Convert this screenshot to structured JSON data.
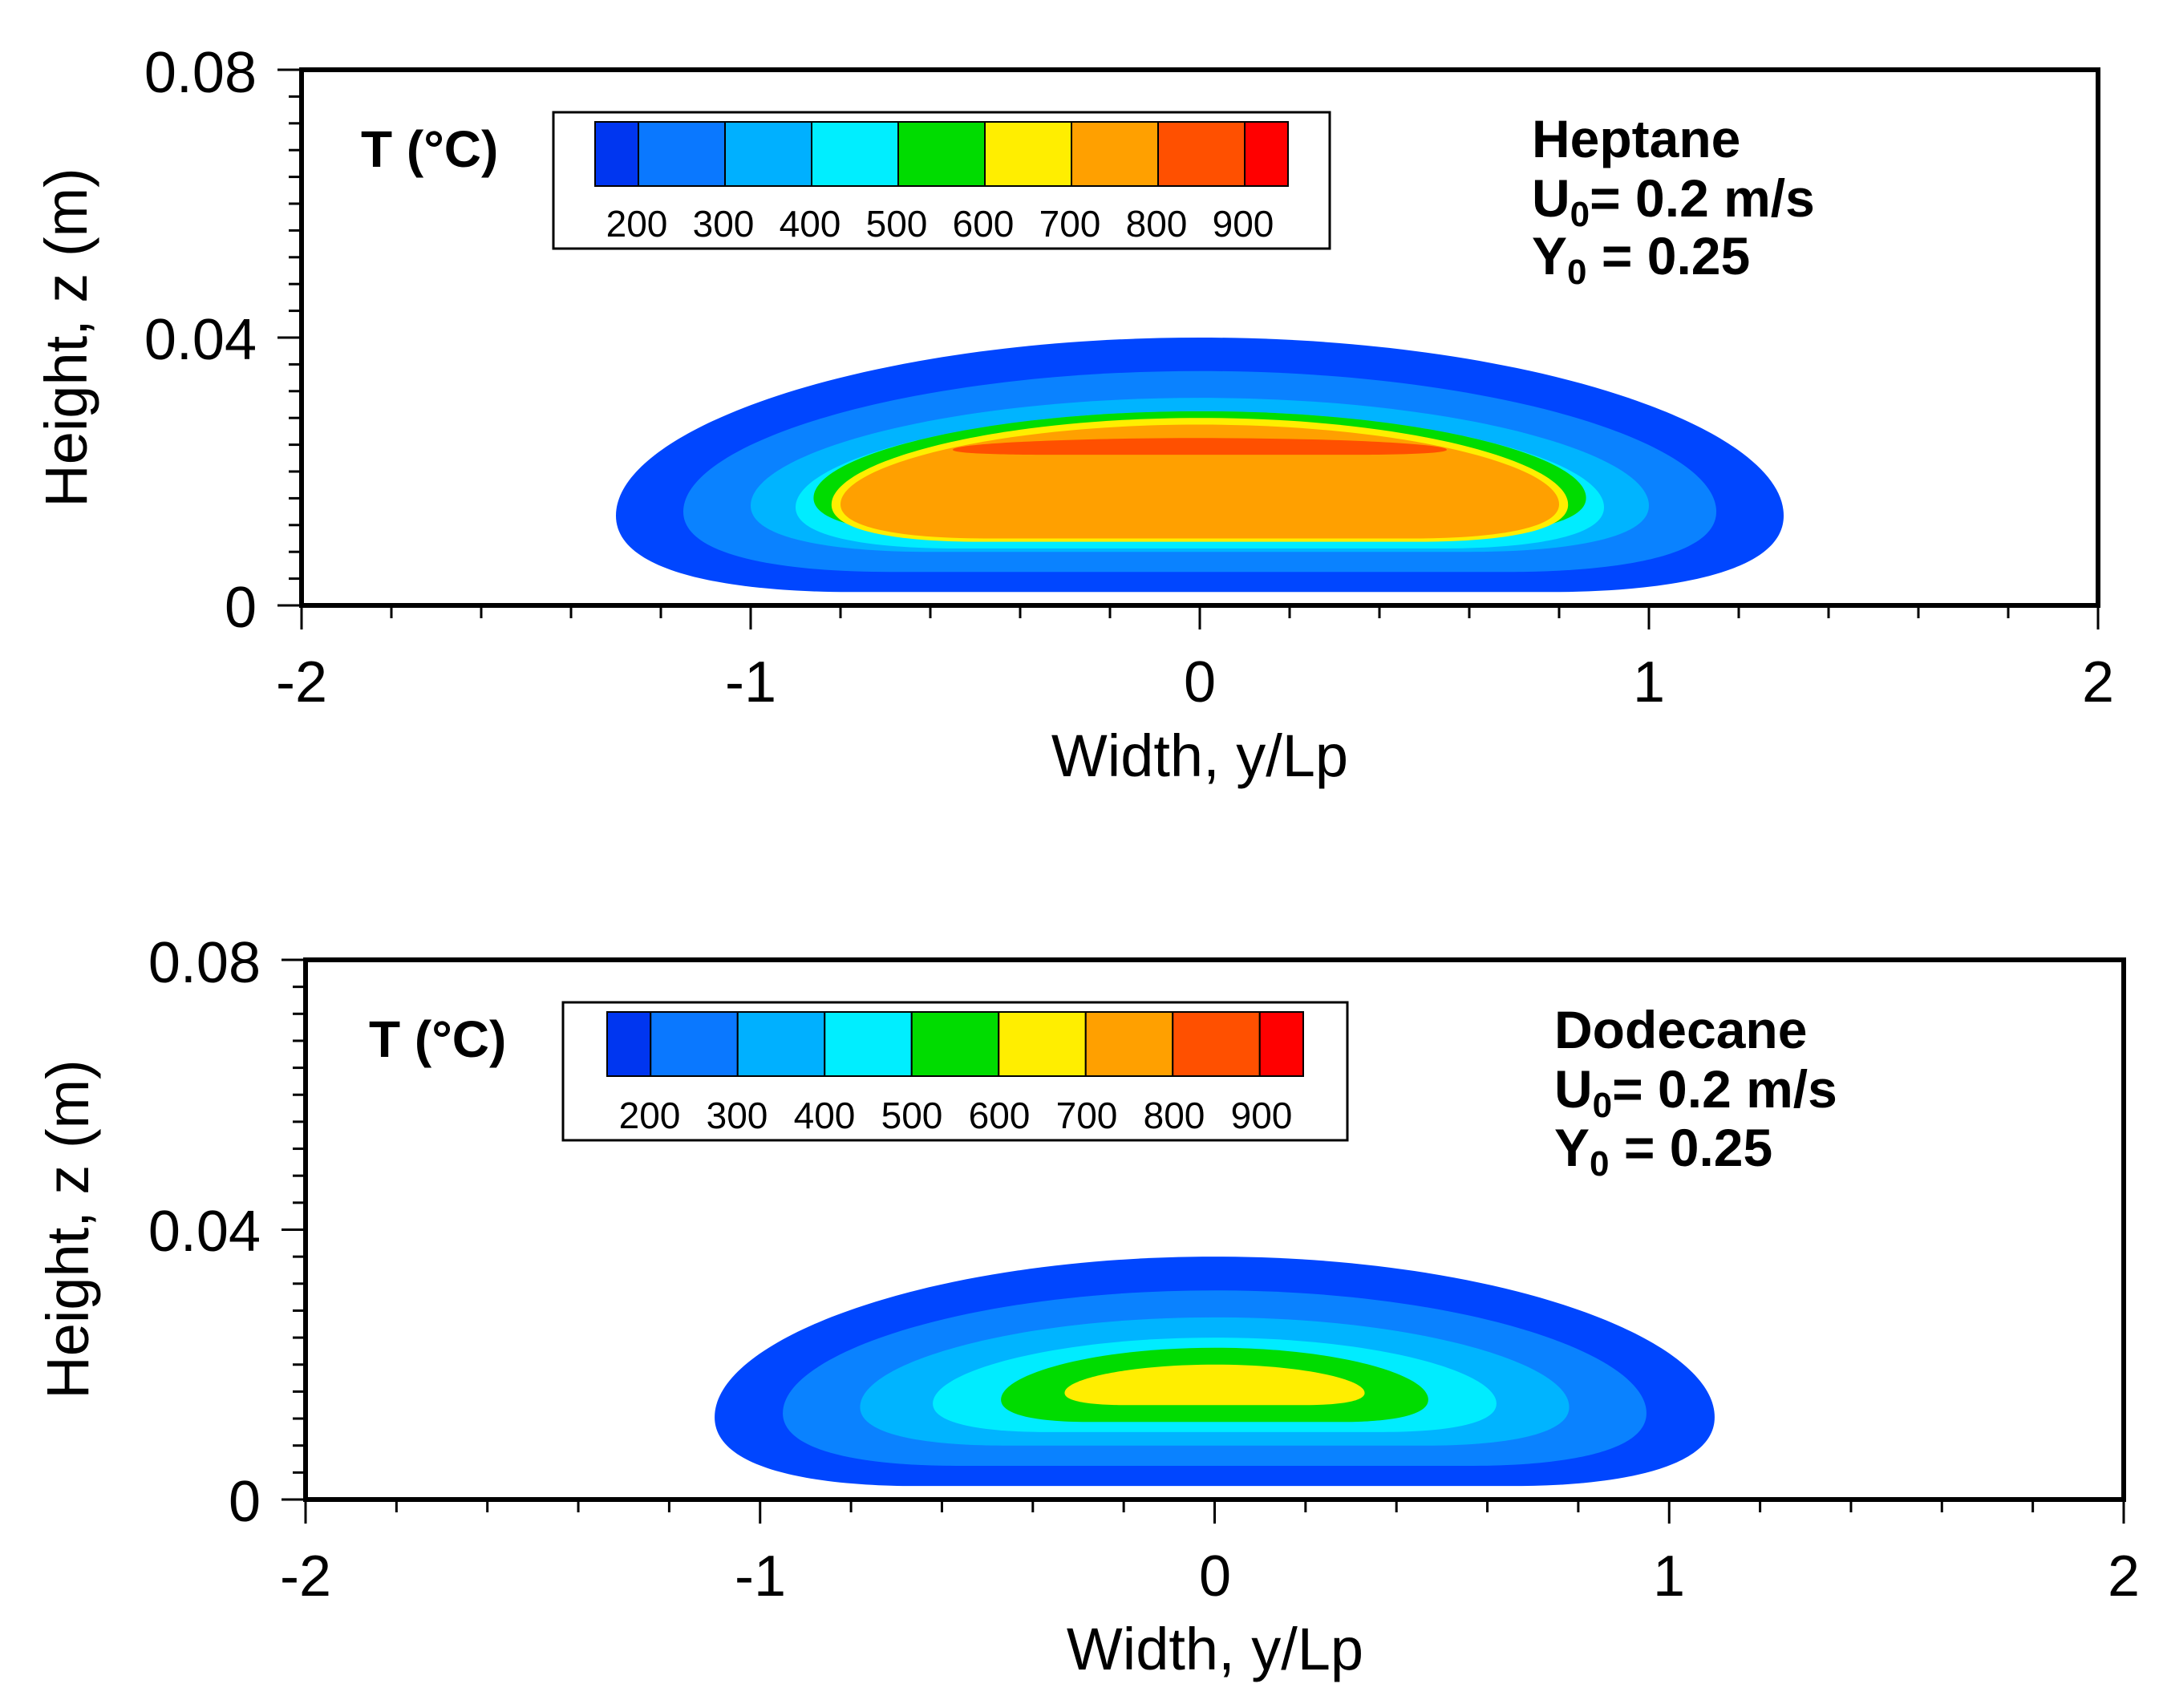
{
  "chart_data": [
    {
      "type": "heatmap",
      "xlabel": "Width, y/Lp",
      "ylabel": "Height, z (m)",
      "xlim": [
        -2,
        2
      ],
      "ylim": [
        0,
        0.08
      ],
      "xticks": [
        "-2",
        "-1",
        "0",
        "1",
        "2"
      ],
      "yticks": [
        "0",
        "0.04",
        "0.08"
      ],
      "colorbar": {
        "title": "T (°C)",
        "levels": [
          "200",
          "300",
          "400",
          "500",
          "600",
          "700",
          "800",
          "900"
        ]
      },
      "annotation": {
        "fuel": "Heptane",
        "u_main": "U",
        "u_sub": "0",
        "u_rest": "= 0.2 m/s",
        "y_main": "Y",
        "y_sub": "0",
        "y_rest": " = 0.25"
      },
      "contours": [
        {
          "temperature": 150,
          "color": "#0046ff",
          "y_half": 1.3,
          "z_top": 0.04,
          "z_bot": 0.002
        },
        {
          "temperature": 250,
          "color": "#0a82ff",
          "y_half": 1.15,
          "z_top": 0.035,
          "z_bot": 0.005
        },
        {
          "temperature": 350,
          "color": "#00b4ff",
          "y_half": 1.0,
          "z_top": 0.031,
          "z_bot": 0.008
        },
        {
          "temperature": 450,
          "color": "#00ecff",
          "y_half": 0.9,
          "z_top": 0.029,
          "z_bot": 0.0085
        },
        {
          "temperature": 550,
          "color": "#00dc00",
          "y_half": 0.86,
          "z_top": 0.029,
          "z_bot": 0.0105
        },
        {
          "temperature": 650,
          "color": "#ffee00",
          "y_half": 0.82,
          "z_top": 0.028,
          "z_bot": 0.0095
        },
        {
          "temperature": 750,
          "color": "#ffa000",
          "y_half": 0.8,
          "z_top": 0.027,
          "z_bot": 0.01
        },
        {
          "temperature": 850,
          "color": "#ff5000",
          "y_half": 0.55,
          "z_top": 0.025,
          "z_bot": 0.0225
        }
      ]
    },
    {
      "type": "heatmap",
      "xlabel": "Width, y/Lp",
      "ylabel": "Height, z (m)",
      "xlim": [
        -2,
        2
      ],
      "ylim": [
        0,
        0.08
      ],
      "xticks": [
        "-2",
        "-1",
        "0",
        "1",
        "2"
      ],
      "yticks": [
        "0",
        "0.04",
        "0.08"
      ],
      "colorbar": {
        "title": "T (°C)",
        "levels": [
          "200",
          "300",
          "400",
          "500",
          "600",
          "700",
          "800",
          "900"
        ]
      },
      "annotation": {
        "fuel": "Dodecane",
        "u_main": "U",
        "u_sub": "0",
        "u_rest": "= 0.2 m/s",
        "y_main": "Y",
        "y_sub": "0",
        "y_rest": " = 0.25"
      },
      "contours": [
        {
          "temperature": 150,
          "color": "#0046ff",
          "y_half": 1.1,
          "z_top": 0.036,
          "z_bot": 0.002
        },
        {
          "temperature": 250,
          "color": "#0a82ff",
          "y_half": 0.95,
          "z_top": 0.031,
          "z_bot": 0.005
        },
        {
          "temperature": 350,
          "color": "#00b4ff",
          "y_half": 0.78,
          "z_top": 0.027,
          "z_bot": 0.008
        },
        {
          "temperature": 450,
          "color": "#00ecff",
          "y_half": 0.62,
          "z_top": 0.024,
          "z_bot": 0.01
        },
        {
          "temperature": 550,
          "color": "#00dc00",
          "y_half": 0.47,
          "z_top": 0.0225,
          "z_bot": 0.0115
        },
        {
          "temperature": 650,
          "color": "#ffee00",
          "y_half": 0.33,
          "z_top": 0.02,
          "z_bot": 0.014
        }
      ]
    }
  ],
  "colorbar_colors": [
    "#0036f0",
    "#0a78ff",
    "#00b0ff",
    "#00eeff",
    "#00dc00",
    "#ffee00",
    "#ffa000",
    "#ff5000",
    "#ff0000"
  ]
}
